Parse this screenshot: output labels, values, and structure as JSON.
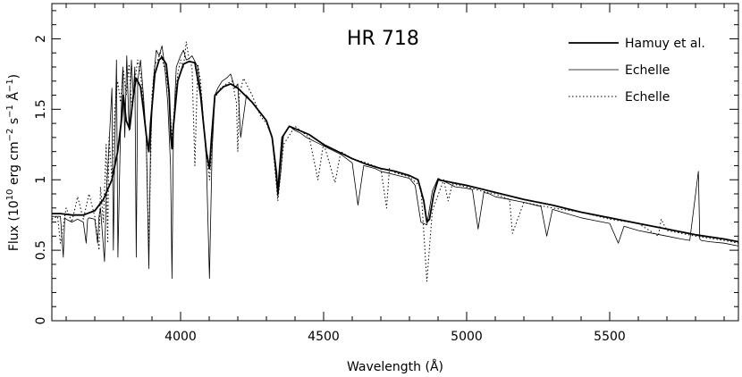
{
  "chart_data": {
    "type": "line",
    "title": "HR 718",
    "xlabel": "Wavelength (Å)",
    "ylabel_parts": [
      "Flux (10",
      "10",
      " erg cm",
      "−2",
      " s",
      "−1",
      " Å",
      "−1",
      ")"
    ],
    "xlim": [
      3550,
      5950
    ],
    "ylim": [
      0,
      2.25
    ],
    "xticks": [
      4000,
      4500,
      5000,
      5500
    ],
    "xtick_labels": [
      "4000",
      "4500",
      "5000",
      "5500"
    ],
    "yticks": [
      0,
      0.5,
      1,
      1.5,
      2
    ],
    "ytick_labels": [
      "0",
      "0.5",
      "1",
      "1.5",
      "2"
    ],
    "legend_position": "top-right",
    "series": [
      {
        "name": "Hamuy et al.",
        "style": "thick",
        "color": "#000000",
        "x": [
          3550,
          3580,
          3620,
          3660,
          3700,
          3730,
          3760,
          3780,
          3795,
          3800,
          3810,
          3822,
          3835,
          3845,
          3860,
          3870,
          3880,
          3889,
          3895,
          3910,
          3925,
          3935,
          3950,
          3960,
          3966,
          3970,
          3975,
          3990,
          4010,
          4030,
          4050,
          4070,
          4090,
          4101,
          4108,
          4120,
          4150,
          4175,
          4200,
          4250,
          4300,
          4320,
          4335,
          4340,
          4345,
          4355,
          4380,
          4450,
          4500,
          4550,
          4600,
          4650,
          4700,
          4750,
          4800,
          4830,
          4850,
          4861,
          4870,
          4885,
          4900,
          4950,
          5000,
          5100,
          5200,
          5300,
          5400,
          5500,
          5600,
          5700,
          5800,
          5900,
          5950
        ],
        "y": [
          0.76,
          0.76,
          0.75,
          0.75,
          0.78,
          0.86,
          1.0,
          1.2,
          1.45,
          1.6,
          1.42,
          1.36,
          1.6,
          1.72,
          1.66,
          1.5,
          1.32,
          1.2,
          1.4,
          1.75,
          1.85,
          1.87,
          1.82,
          1.62,
          1.3,
          1.22,
          1.38,
          1.7,
          1.82,
          1.84,
          1.83,
          1.6,
          1.2,
          1.08,
          1.3,
          1.6,
          1.66,
          1.68,
          1.65,
          1.55,
          1.42,
          1.3,
          1.05,
          0.9,
          1.05,
          1.3,
          1.38,
          1.32,
          1.25,
          1.2,
          1.15,
          1.11,
          1.08,
          1.06,
          1.03,
          1.0,
          0.85,
          0.7,
          0.72,
          0.9,
          1.0,
          0.98,
          0.96,
          0.91,
          0.86,
          0.82,
          0.77,
          0.73,
          0.69,
          0.65,
          0.61,
          0.58,
          0.56
        ]
      },
      {
        "name": "Echelle",
        "style": "thin",
        "color": "#000000",
        "x": [
          3550,
          3580,
          3590,
          3595,
          3600,
          3620,
          3640,
          3660,
          3670,
          3675,
          3680,
          3700,
          3710,
          3715,
          3720,
          3734,
          3740,
          3750,
          3760,
          3765,
          3770,
          3776,
          3781,
          3790,
          3798,
          3805,
          3812,
          3820,
          3828,
          3835,
          3840,
          3845,
          3850,
          3860,
          3870,
          3880,
          3889,
          3895,
          3905,
          3915,
          3925,
          3935,
          3945,
          3955,
          3965,
          3970,
          3975,
          3985,
          4000,
          4010,
          4020,
          4030,
          4040,
          4050,
          4060,
          4075,
          4090,
          4101,
          4110,
          4120,
          4130,
          4145,
          4160,
          4175,
          4190,
          4200,
          4210,
          4230,
          4250,
          4270,
          4290,
          4300,
          4310,
          4320,
          4330,
          4340,
          4350,
          4360,
          4380,
          4400,
          4420,
          4440,
          4460,
          4480,
          4500,
          4520,
          4540,
          4560,
          4600,
          4620,
          4640,
          4680,
          4700,
          4720,
          4760,
          4800,
          4820,
          4840,
          4861,
          4880,
          4900,
          4920,
          4940,
          4960,
          5000,
          5020,
          5040,
          5060,
          5080,
          5100,
          5150,
          5200,
          5260,
          5280,
          5300,
          5350,
          5400,
          5450,
          5500,
          5530,
          5550,
          5600,
          5650,
          5700,
          5750,
          5780,
          5810,
          5815,
          5820,
          5850,
          5900,
          5950
        ],
        "y": [
          0.74,
          0.74,
          0.45,
          0.73,
          0.72,
          0.7,
          0.72,
          0.7,
          0.55,
          0.72,
          0.73,
          0.72,
          0.55,
          0.74,
          0.8,
          0.42,
          0.88,
          1.25,
          1.65,
          0.5,
          1.2,
          1.85,
          0.45,
          1.35,
          1.8,
          1.3,
          1.88,
          1.35,
          1.85,
          1.58,
          1.8,
          0.45,
          1.7,
          1.85,
          1.6,
          1.3,
          0.37,
          1.25,
          1.7,
          1.92,
          1.88,
          1.95,
          1.8,
          1.55,
          1.1,
          0.3,
          1.35,
          1.8,
          1.88,
          1.92,
          1.85,
          1.86,
          1.88,
          1.84,
          1.8,
          1.55,
          1.15,
          0.3,
          1.2,
          1.6,
          1.65,
          1.7,
          1.72,
          1.75,
          1.65,
          1.68,
          1.3,
          1.6,
          1.55,
          1.5,
          1.45,
          1.42,
          1.35,
          1.3,
          1.1,
          0.88,
          1.05,
          1.32,
          1.38,
          1.35,
          1.33,
          1.3,
          1.28,
          1.26,
          1.24,
          1.22,
          1.2,
          1.18,
          1.12,
          0.82,
          1.1,
          1.08,
          1.06,
          1.05,
          1.03,
          1.01,
          0.96,
          0.7,
          0.68,
          0.92,
          1.01,
          0.99,
          0.97,
          0.95,
          0.94,
          0.93,
          0.65,
          0.91,
          0.9,
          0.88,
          0.86,
          0.84,
          0.81,
          0.6,
          0.79,
          0.76,
          0.73,
          0.71,
          0.69,
          0.55,
          0.67,
          0.64,
          0.62,
          0.6,
          0.58,
          0.57,
          1.06,
          0.58,
          0.57,
          0.56,
          0.55,
          0.53
        ]
      },
      {
        "name": "Echelle",
        "style": "dotted",
        "color": "#000000",
        "x": [
          3550,
          3570,
          3580,
          3600,
          3620,
          3640,
          3660,
          3680,
          3700,
          3715,
          3720,
          3730,
          3740,
          3745,
          3750,
          3760,
          3770,
          3780,
          3790,
          3800,
          3810,
          3820,
          3830,
          3840,
          3850,
          3860,
          3870,
          3880,
          3889,
          3900,
          3910,
          3920,
          3930,
          3940,
          3950,
          3960,
          3970,
          3980,
          3990,
          4000,
          4010,
          4020,
          4030,
          4040,
          4050,
          4060,
          4070,
          4080,
          4090,
          4101,
          4110,
          4120,
          4140,
          4160,
          4180,
          4195,
          4200,
          4205,
          4220,
          4250,
          4280,
          4300,
          4320,
          4340,
          4360,
          4400,
          4450,
          4480,
          4500,
          4540,
          4560,
          4600,
          4650,
          4700,
          4720,
          4730,
          4750,
          4800,
          4840,
          4861,
          4880,
          4920,
          4935,
          4950,
          5000,
          5050,
          5100,
          5150,
          5160,
          5200,
          5300,
          5400,
          5500,
          5600,
          5670,
          5680,
          5700,
          5800,
          5900,
          5950
        ],
        "y": [
          0.72,
          0.74,
          0.55,
          0.8,
          0.7,
          0.88,
          0.72,
          0.9,
          0.74,
          0.5,
          0.95,
          0.7,
          1.25,
          0.55,
          1.3,
          1.0,
          1.5,
          1.7,
          1.55,
          1.78,
          1.6,
          1.82,
          1.5,
          1.7,
          1.85,
          1.75,
          1.55,
          1.3,
          0.5,
          1.6,
          1.82,
          1.85,
          1.9,
          1.82,
          1.75,
          1.58,
          1.3,
          1.55,
          1.75,
          1.85,
          1.8,
          1.98,
          1.85,
          1.8,
          1.1,
          1.82,
          1.7,
          1.4,
          1.2,
          1.0,
          1.25,
          1.58,
          1.65,
          1.68,
          1.7,
          1.55,
          1.2,
          1.6,
          1.72,
          1.6,
          1.45,
          1.4,
          1.3,
          0.85,
          1.25,
          1.38,
          1.3,
          1.0,
          1.26,
          0.98,
          1.2,
          1.15,
          1.12,
          1.08,
          0.8,
          1.08,
          1.05,
          1.02,
          0.95,
          0.28,
          0.78,
          1.0,
          0.85,
          0.97,
          0.95,
          0.92,
          0.9,
          0.86,
          0.62,
          0.84,
          0.8,
          0.77,
          0.72,
          0.69,
          0.6,
          0.72,
          0.64,
          0.6,
          0.57,
          0.55
        ]
      }
    ]
  }
}
